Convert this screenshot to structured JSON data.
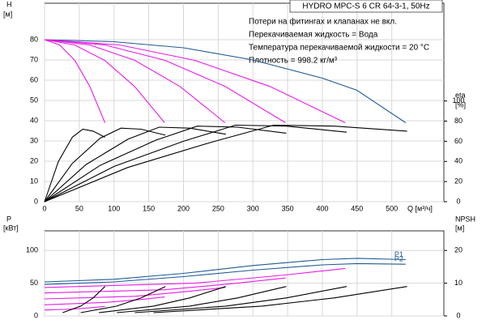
{
  "chart_data": [
    {
      "type": "line",
      "title": "HYDRO MPC-S 6 CR 64-3-1, 50Hz",
      "annotations": [
        "Потери на фитингах и клапанах не вкл.",
        "Перекачиваемая жидкость = Вода",
        "Температура перекачиваемой жидкости = 20 °C",
        "Плотность = 998.2 кг/м³"
      ],
      "ylabel": "H",
      "yunit": "[м]",
      "y2label": "eta",
      "y2unit": "[%]",
      "xlabel": "Q [м³/ч]",
      "xlim": [
        0,
        575
      ],
      "xticks": [
        0,
        50,
        100,
        150,
        200,
        250,
        300,
        350,
        400,
        450,
        500
      ],
      "ylim": [
        0,
        98
      ],
      "yticks": [
        0,
        10,
        20,
        30,
        40,
        50,
        60,
        70,
        80
      ],
      "y2lim": [
        0,
        197
      ],
      "y2ticks": [
        0,
        20,
        40,
        60,
        80,
        100
      ],
      "grid": true,
      "series": [
        {
          "color": "#1f5a96",
          "x": [
            0,
            100,
            200,
            300,
            400,
            450,
            520
          ],
          "values": [
            80,
            79,
            76,
            70,
            61,
            55,
            39
          ]
        },
        {
          "color": "#e81ce8",
          "x": [
            0,
            21.75,
            43.5,
            65.25,
            87
          ],
          "values": [
            80,
            77.4,
            69.8,
            56.9,
            39
          ]
        },
        {
          "color": "#e81ce8",
          "x": [
            0,
            43.25,
            86.5,
            129.75,
            173
          ],
          "values": [
            80,
            77.4,
            69.8,
            56.9,
            39
          ]
        },
        {
          "color": "#e81ce8",
          "x": [
            0,
            65,
            130,
            195,
            260
          ],
          "values": [
            80,
            77.4,
            69.8,
            56.9,
            39
          ]
        },
        {
          "color": "#e81ce8",
          "x": [
            0,
            86.75,
            173.5,
            260.25,
            347
          ],
          "values": [
            80,
            77.4,
            69.8,
            56.9,
            39
          ]
        },
        {
          "color": "#e81ce8",
          "x": [
            0,
            108.25,
            216.5,
            324.75,
            433
          ],
          "values": [
            80,
            77.4,
            69.8,
            56.9,
            39
          ]
        },
        {
          "color": "#000000",
          "axis": "y2",
          "x": [
            0,
            20,
            40,
            55,
            70,
            87
          ],
          "values": [
            0,
            40,
            64,
            72,
            70,
            64
          ]
        },
        {
          "color": "#000000",
          "axis": "y2",
          "x": [
            0,
            40,
            80,
            110,
            139,
            174
          ],
          "values": [
            0,
            38,
            63,
            73,
            72,
            66
          ]
        },
        {
          "color": "#000000",
          "axis": "y2",
          "x": [
            0,
            60,
            120,
            165,
            209,
            261
          ],
          "values": [
            0,
            37,
            62,
            74,
            73,
            67
          ]
        },
        {
          "color": "#000000",
          "axis": "y2",
          "x": [
            0,
            80,
            160,
            220,
            278,
            348
          ],
          "values": [
            0,
            36,
            61,
            75,
            74,
            68
          ]
        },
        {
          "color": "#000000",
          "axis": "y2",
          "x": [
            0,
            100,
            200,
            275,
            348,
            435
          ],
          "values": [
            0,
            35,
            60,
            76,
            75,
            69
          ]
        },
        {
          "color": "#000000",
          "axis": "y2",
          "x": [
            0,
            120,
            240,
            330,
            417,
            522
          ],
          "values": [
            0,
            34,
            59,
            76,
            75,
            70
          ]
        }
      ]
    },
    {
      "type": "line",
      "ylabel": "P",
      "yunit": "[кВт]",
      "y2label": "NPSH",
      "y2unit": "[м]",
      "xlim": [
        0,
        575
      ],
      "xticks": [
        0,
        50,
        100,
        150,
        200,
        250,
        300,
        350,
        400,
        450,
        500
      ],
      "ylim": [
        0,
        130
      ],
      "yticks": [
        0,
        50,
        100
      ],
      "y2lim": [
        0,
        26
      ],
      "y2ticks": [
        0,
        10,
        20
      ],
      "grid": true,
      "series": [
        {
          "name": "P1",
          "color": "#1f5a96",
          "x": [
            0,
            100,
            200,
            300,
            400,
            450,
            520
          ],
          "values": [
            52,
            56,
            65,
            77,
            86,
            88,
            86
          ]
        },
        {
          "name": "P2",
          "color": "#1f5a96",
          "x": [
            0,
            100,
            200,
            300,
            400,
            450,
            520
          ],
          "values": [
            48,
            52,
            60,
            70,
            78,
            80,
            79
          ]
        },
        {
          "color": "#e81ce8",
          "x": [
            0,
            43.5,
            69.6,
            87
          ],
          "values": [
            9,
            10.5,
            12.8,
            14.5
          ]
        },
        {
          "color": "#e81ce8",
          "x": [
            0,
            86.5,
            138.4,
            173
          ],
          "values": [
            17,
            20.5,
            25,
            29
          ]
        },
        {
          "color": "#e81ce8",
          "x": [
            0,
            130,
            208,
            260
          ],
          "values": [
            26,
            30,
            37.5,
            43.5
          ]
        },
        {
          "color": "#e81ce8",
          "x": [
            0,
            173.5,
            277.6,
            347
          ],
          "values": [
            35,
            40,
            50,
            58
          ]
        },
        {
          "color": "#e81ce8",
          "x": [
            0,
            216.5,
            346.4,
            433
          ],
          "values": [
            43.5,
            50,
            62.5,
            72.5
          ]
        },
        {
          "color": "#000000",
          "axis": "y2",
          "x": [
            26,
            52,
            70,
            87
          ],
          "values": [
            1,
            3,
            5.5,
            9
          ]
        },
        {
          "color": "#000000",
          "axis": "y2",
          "x": [
            52,
            104,
            139,
            174
          ],
          "values": [
            1,
            3,
            5.5,
            9
          ]
        },
        {
          "color": "#000000",
          "axis": "y2",
          "x": [
            78,
            157,
            209,
            261
          ],
          "values": [
            1,
            3,
            5.5,
            9
          ]
        },
        {
          "color": "#000000",
          "axis": "y2",
          "x": [
            104,
            209,
            278,
            348
          ],
          "values": [
            1,
            3,
            5.5,
            9
          ]
        },
        {
          "color": "#000000",
          "axis": "y2",
          "x": [
            130,
            261,
            348,
            435
          ],
          "values": [
            1,
            3,
            5.5,
            9
          ]
        },
        {
          "color": "#000000",
          "axis": "y2",
          "x": [
            157,
            313,
            417,
            522
          ],
          "values": [
            1,
            3,
            5.5,
            9
          ]
        }
      ]
    }
  ]
}
